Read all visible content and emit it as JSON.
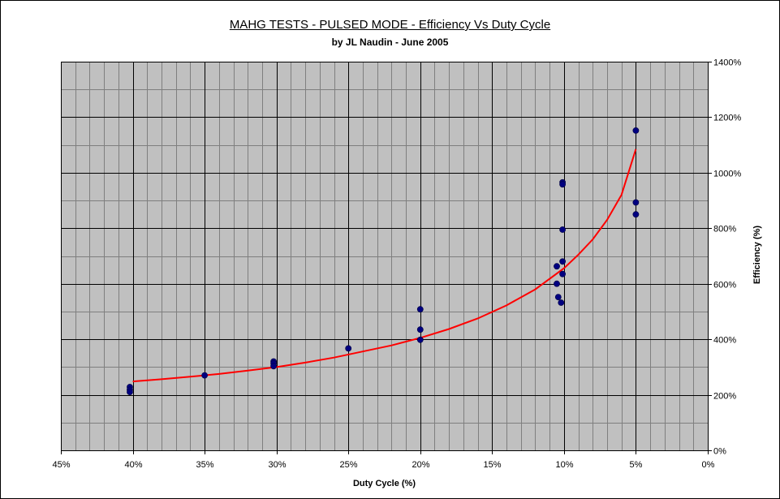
{
  "chart_data": {
    "type": "scatter",
    "title": "MAHG TESTS - PULSED MODE - Efficiency Vs Duty Cycle",
    "subtitle": "by JL Naudin - June 2005",
    "xlabel": "Duty Cycle (%)",
    "ylabel": "Efficiency (%)",
    "x_reversed": true,
    "xlim": [
      45,
      0
    ],
    "ylim": [
      0,
      1400
    ],
    "x_ticks": [
      45,
      40,
      35,
      30,
      25,
      20,
      15,
      10,
      5,
      0
    ],
    "x_tick_labels": [
      "45%",
      "40%",
      "35%",
      "30%",
      "25%",
      "20%",
      "15%",
      "10%",
      "5%",
      "0%"
    ],
    "y_ticks": [
      0,
      200,
      400,
      600,
      800,
      1000,
      1200,
      1400
    ],
    "y_tick_labels": [
      "0%",
      "200%",
      "400%",
      "600%",
      "800%",
      "1000%",
      "1200%",
      "1400%"
    ],
    "y_axis_position": "right",
    "grid": true,
    "legend": "none",
    "colors": {
      "plot_bg": "#c0c0c0",
      "points": "#000080",
      "trend": "#ff0000",
      "grid": "#000000"
    },
    "series": [
      {
        "values": [
          [
            40.2,
            228
          ],
          [
            40.2,
            218
          ],
          [
            40.2,
            210
          ],
          [
            35.0,
            270
          ],
          [
            30.2,
            320
          ],
          [
            30.2,
            313
          ],
          [
            30.2,
            303
          ],
          [
            25.0,
            367
          ],
          [
            20.0,
            508
          ],
          [
            20.0,
            435
          ],
          [
            20.0,
            398
          ],
          [
            10.5,
            663
          ],
          [
            10.5,
            600
          ],
          [
            10.4,
            552
          ],
          [
            10.2,
            532
          ],
          [
            10.1,
            965
          ],
          [
            10.1,
            958
          ],
          [
            10.1,
            795
          ],
          [
            10.1,
            680
          ],
          [
            10.1,
            635
          ],
          [
            5.0,
            1152
          ],
          [
            5.0,
            893
          ],
          [
            5.0,
            850
          ]
        ]
      }
    ],
    "trendline": {
      "values": [
        [
          40,
          248
        ],
        [
          38,
          256
        ],
        [
          36,
          265
        ],
        [
          34,
          275
        ],
        [
          32,
          287
        ],
        [
          30,
          300
        ],
        [
          28,
          316
        ],
        [
          26,
          334
        ],
        [
          24,
          356
        ],
        [
          22,
          378
        ],
        [
          20,
          405
        ],
        [
          18,
          437
        ],
        [
          16,
          475
        ],
        [
          14,
          522
        ],
        [
          12,
          580
        ],
        [
          10,
          656
        ],
        [
          9,
          705
        ],
        [
          8,
          760
        ],
        [
          7,
          830
        ],
        [
          6,
          920
        ],
        [
          5,
          1085
        ]
      ]
    }
  }
}
